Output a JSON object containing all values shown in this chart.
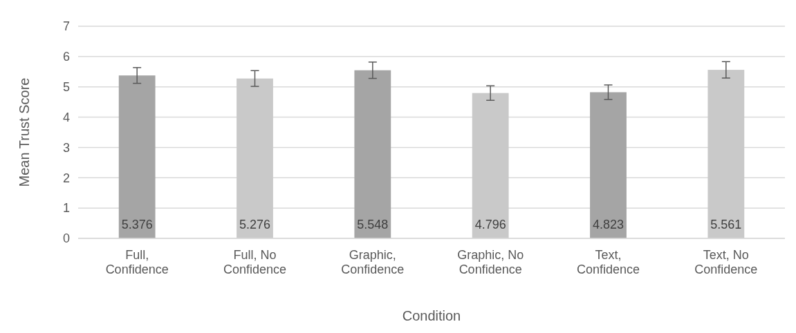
{
  "chart_data": {
    "type": "bar",
    "xlabel": "Condition",
    "ylabel": "Mean Trust Score",
    "categories": [
      "Full, Confidence",
      "Full, No Confidence",
      "Graphic, Confidence",
      "Graphic, No Confidence",
      "Text, Confidence",
      "Text, No Confidence"
    ],
    "values": [
      5.376,
      5.276,
      5.548,
      4.796,
      4.823,
      5.561
    ],
    "colors": [
      "#a5a5a5",
      "#c9c9c9",
      "#a5a5a5",
      "#c9c9c9",
      "#a5a5a5",
      "#c9c9c9"
    ],
    "errors": [
      0.26,
      0.26,
      0.27,
      0.24,
      0.24,
      0.27
    ],
    "ylim": [
      0,
      7
    ],
    "yticks": [
      0,
      1,
      2,
      3,
      4,
      5,
      6,
      7
    ],
    "grid": "y",
    "data_labels": true
  }
}
